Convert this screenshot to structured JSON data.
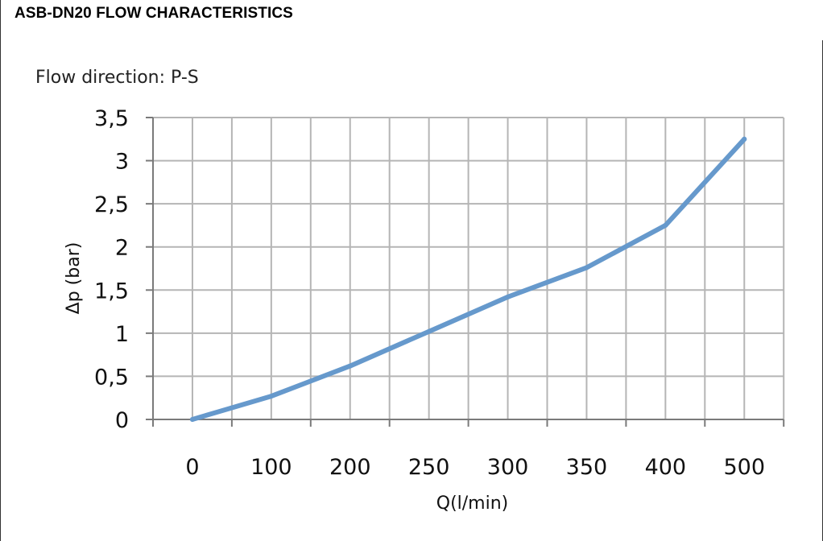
{
  "title": "ASB-DN20 FLOW CHARACTERISTICS",
  "subtitle": "Flow direction: P-S",
  "chart_data": {
    "type": "line",
    "categories": [
      "0",
      "100",
      "200",
      "250",
      "300",
      "350",
      "400",
      "500"
    ],
    "y_tick_labels": [
      "0",
      "0,5",
      "1",
      "1,5",
      "2",
      "2,5",
      "3",
      "3,5"
    ],
    "values": [
      0,
      0.27,
      0.62,
      1.02,
      1.42,
      1.76,
      2.25,
      3.25
    ],
    "xlabel": "Q(l/min)",
    "ylabel": "Δp (bar)",
    "ylim": [
      0,
      3.5
    ],
    "grid": true,
    "line_color": "#6699cc"
  }
}
